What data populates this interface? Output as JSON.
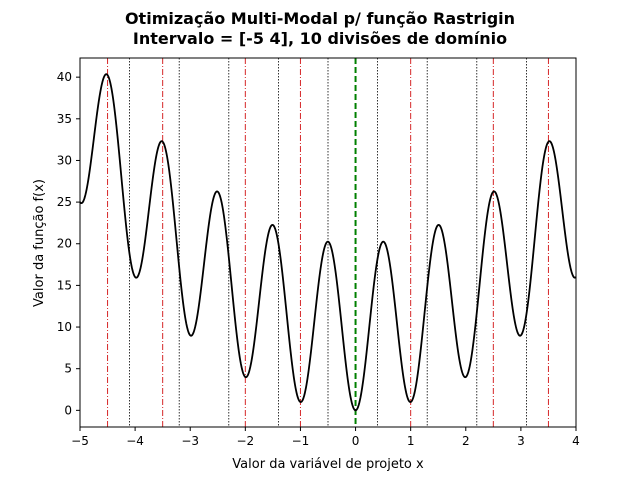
{
  "chart_data": {
    "type": "line",
    "title_line1": "Otimização Multi-Modal p/ função Rastrigin",
    "title_line2": "Intervalo = [-5  4], 10 divisões de domínio",
    "xlabel": "Valor da variável de projeto x",
    "ylabel": "Valor da função f(x)",
    "xlim": [
      -5,
      4
    ],
    "ylim": [
      -2,
      42.3
    ],
    "x_ticks": [
      -5,
      -4,
      -3,
      -2,
      -1,
      0,
      1,
      2,
      3,
      4
    ],
    "x_tick_labels": [
      "−5",
      "−4",
      "−3",
      "−2",
      "−1",
      "0",
      "1",
      "2",
      "3",
      "4"
    ],
    "y_ticks": [
      0,
      5,
      10,
      15,
      20,
      25,
      30,
      35,
      40
    ],
    "y_tick_labels": [
      "0",
      "5",
      "10",
      "15",
      "20",
      "25",
      "30",
      "35",
      "40"
    ],
    "series": [
      {
        "function": "rastrigin",
        "formula": "10 + x^2 - 10*cos(2*pi*x)",
        "x_range": [
          -5,
          4
        ],
        "color": "#000000"
      }
    ],
    "domain_division_lines": {
      "x": [
        -4.1,
        -3.2,
        -2.3,
        -1.4,
        -0.5,
        0.4,
        1.3,
        2.2,
        3.1
      ],
      "color": "#000000",
      "style": "dotted"
    },
    "local_maxima_lines": {
      "x": [
        -4.5,
        -3.5,
        -2.0,
        -1.0,
        1.0,
        2.5,
        3.5
      ],
      "color": "#d62728",
      "style": "dashdot"
    },
    "global_minimum_line": {
      "x": 0,
      "color": "#008000",
      "style": "dashed"
    },
    "grid": false,
    "legend": "none"
  }
}
